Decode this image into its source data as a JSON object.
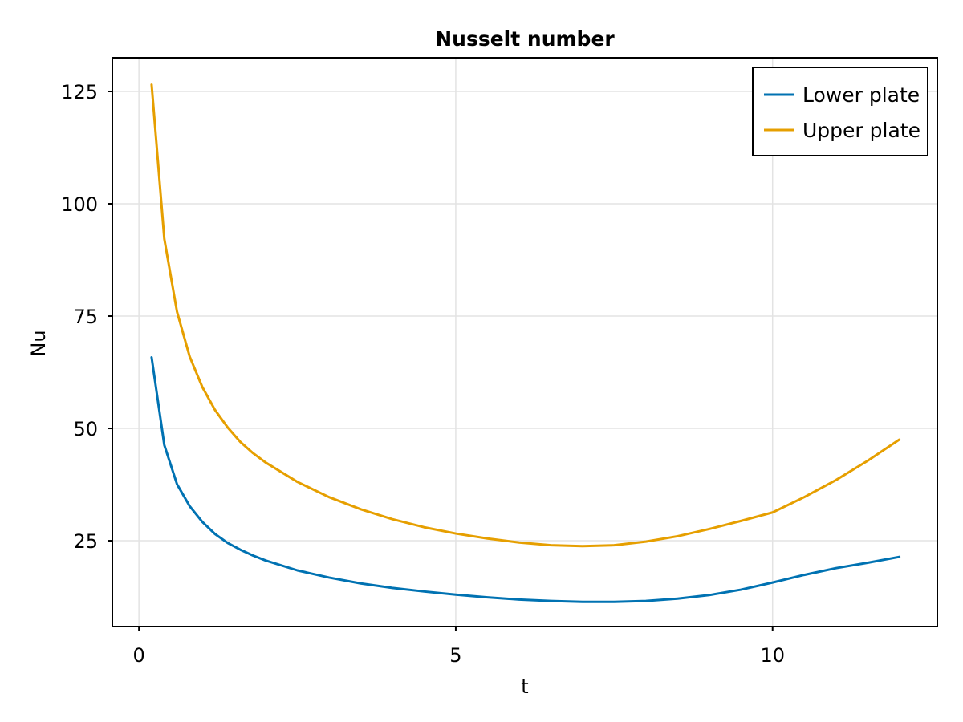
{
  "chart_data": {
    "type": "line",
    "title": "Nusselt number",
    "xlabel": "t",
    "ylabel": "Nu",
    "xlim": [
      -0.42,
      12.6
    ],
    "ylim": [
      5.9,
      132.5
    ],
    "xticks": [
      0,
      5,
      10
    ],
    "yticks": [
      25,
      50,
      75,
      100,
      125
    ],
    "grid": true,
    "legend_position": "top-right",
    "series": [
      {
        "name": "Lower plate",
        "color": "#0072b2",
        "x": [
          0.2,
          0.4,
          0.6,
          0.8,
          1.0,
          1.2,
          1.4,
          1.6,
          1.8,
          2.0,
          2.5,
          3.0,
          3.5,
          4.0,
          4.5,
          5.0,
          5.5,
          6.0,
          6.5,
          7.0,
          7.5,
          8.0,
          8.5,
          9.0,
          9.5,
          10.0,
          10.5,
          11.0,
          11.5,
          12.0
        ],
        "y": [
          65.8,
          46.3,
          37.6,
          32.7,
          29.2,
          26.5,
          24.5,
          23.0,
          21.7,
          20.6,
          18.4,
          16.8,
          15.5,
          14.5,
          13.7,
          13.0,
          12.4,
          11.9,
          11.6,
          11.4,
          11.4,
          11.6,
          12.1,
          12.9,
          14.1,
          15.7,
          17.4,
          18.9,
          20.1,
          21.4
        ]
      },
      {
        "name": "Upper plate",
        "color": "#e69f00",
        "x": [
          0.2,
          0.4,
          0.6,
          0.8,
          1.0,
          1.2,
          1.4,
          1.6,
          1.8,
          2.0,
          2.5,
          3.0,
          3.5,
          4.0,
          4.5,
          5.0,
          5.5,
          6.0,
          6.5,
          7.0,
          7.5,
          8.0,
          8.5,
          9.0,
          9.5,
          10.0,
          10.5,
          11.0,
          11.5,
          12.0
        ],
        "y": [
          126.5,
          92.2,
          76.0,
          66.0,
          59.2,
          54.1,
          50.2,
          47.0,
          44.5,
          42.4,
          38.1,
          34.7,
          32.0,
          29.8,
          28.0,
          26.6,
          25.5,
          24.6,
          24.0,
          23.8,
          24.0,
          24.8,
          26.0,
          27.6,
          29.4,
          31.3,
          34.7,
          38.5,
          42.8,
          47.5
        ]
      }
    ]
  }
}
